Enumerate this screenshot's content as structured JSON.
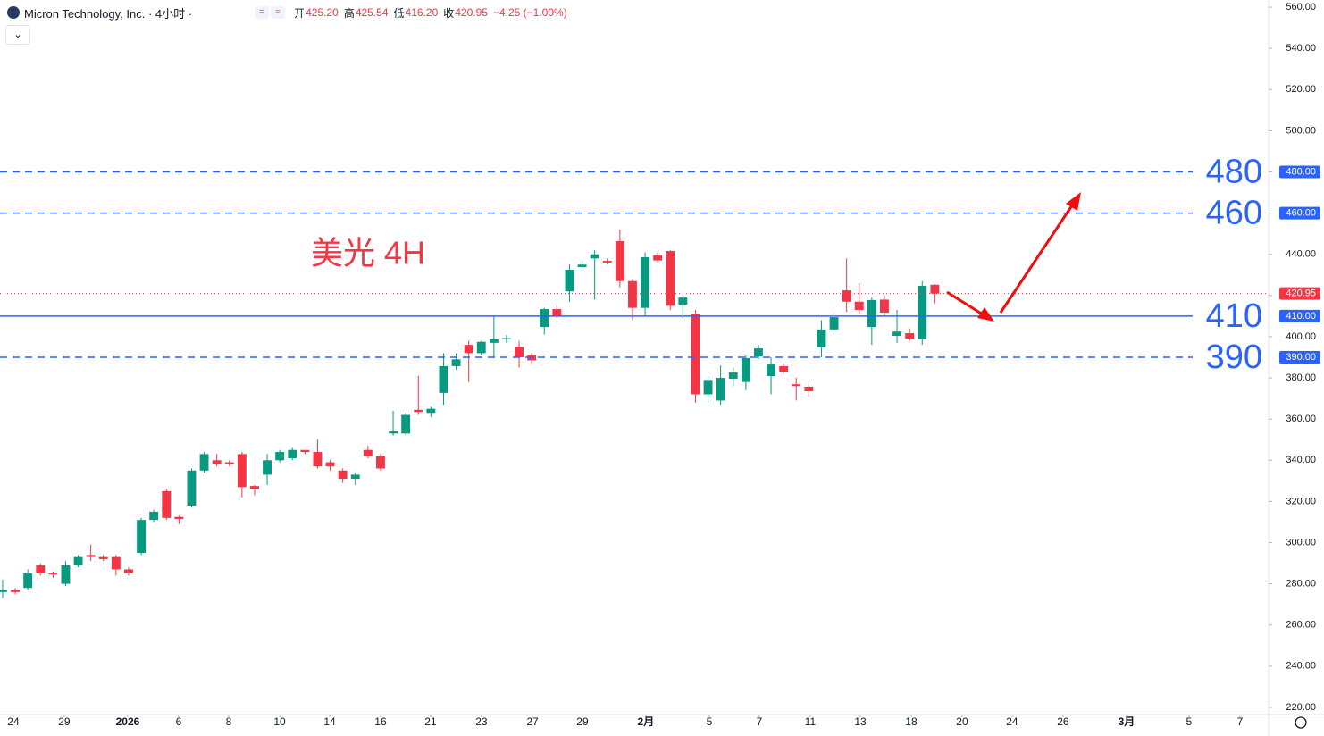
{
  "header": {
    "symbol": "Micron Technology, Inc. · 4小时 ·",
    "fields": [
      {
        "label": "开",
        "value": "425.20"
      },
      {
        "label": "高",
        "value": "425.54"
      },
      {
        "label": "低",
        "value": "416.20"
      },
      {
        "label": "收",
        "value": "420.95"
      }
    ],
    "change": "−4.25 (−1.00%)"
  },
  "chart_data": {
    "type": "candlestick",
    "annotation": "美光 4H",
    "up_color": "#089981",
    "down_color": "#f23645",
    "grid": false,
    "categories": [
      null,
      null,
      null,
      null,
      null,
      null,
      null,
      null,
      null,
      null,
      null,
      null,
      null,
      null,
      null,
      null,
      null,
      null,
      null,
      null,
      null,
      null,
      null,
      null,
      null,
      null,
      null,
      null,
      null,
      null,
      null,
      null,
      null,
      null,
      null,
      null,
      null,
      null,
      null,
      null,
      null,
      null,
      null,
      null,
      null,
      null,
      null,
      null,
      null,
      null,
      null,
      null,
      null,
      null,
      null,
      null,
      null,
      null,
      null,
      null,
      null,
      null,
      null,
      null,
      null,
      null,
      null,
      null,
      null,
      null,
      null,
      null,
      null,
      null,
      null
    ],
    "open": [
      276,
      277,
      278,
      289,
      285,
      280,
      289,
      294,
      293,
      293,
      287,
      295,
      311,
      325,
      312.5,
      318,
      335,
      340,
      339,
      343,
      327.5,
      333,
      340,
      341,
      345,
      344,
      339,
      335,
      331,
      345,
      342,
      353,
      353,
      364.5,
      363,
      372.7,
      385.7,
      396,
      392,
      397,
      399,
      395,
      391,
      404.7,
      413.4,
      422,
      433.8,
      438,
      436.8,
      446.4,
      427,
      414,
      439.5,
      441.6,
      415.6,
      411,
      372,
      369,
      379.6,
      378,
      390.4,
      380.9,
      385.7,
      376.9,
      375.7,
      394.8,
      403.5,
      422.5,
      417,
      404.7,
      418,
      400.4,
      401.7,
      398.7,
      425.2
    ],
    "high": [
      282,
      278,
      287,
      290,
      286,
      291,
      294,
      299,
      294,
      294,
      288,
      312,
      316,
      326,
      313,
      336,
      344,
      343,
      340,
      344,
      328,
      343,
      345,
      346,
      345,
      350,
      340,
      336,
      334,
      347,
      343,
      364,
      363,
      381,
      366,
      392,
      392,
      398,
      398,
      410,
      401,
      398,
      392,
      414,
      415,
      435,
      437,
      442,
      438,
      452,
      428,
      441,
      441,
      442,
      421,
      413,
      381,
      386,
      385,
      391,
      396,
      390,
      387,
      380,
      377,
      408,
      411,
      438,
      426,
      419,
      420,
      413,
      404,
      427,
      425.54
    ],
    "low": [
      273,
      275,
      277,
      284,
      283,
      279,
      288,
      291,
      291,
      284,
      284,
      294,
      310,
      311,
      309,
      317,
      334,
      337,
      337,
      322,
      323,
      328,
      339,
      340,
      343,
      336,
      335,
      329,
      328,
      341,
      335,
      352,
      352,
      362,
      361,
      367,
      384,
      378,
      391,
      390,
      397,
      385,
      387,
      401,
      409,
      417,
      432,
      418,
      435,
      424,
      408,
      410,
      436,
      413,
      409,
      368,
      368,
      367,
      376,
      374,
      389,
      372,
      382,
      369,
      371,
      390,
      402,
      412,
      411,
      396,
      410,
      397,
      398,
      396,
      416.2
    ],
    "close": [
      277,
      276,
      285,
      285,
      284.5,
      289,
      293,
      293,
      292,
      287,
      285,
      311,
      315,
      312,
      311.5,
      335,
      343,
      338,
      338,
      327,
      326,
      340,
      344,
      345,
      344,
      337,
      337,
      331,
      333,
      342,
      336,
      354,
      362,
      363.5,
      365,
      385.7,
      389,
      392,
      397.5,
      398.7,
      399.3,
      390,
      388.5,
      413.4,
      410,
      432.5,
      435,
      440,
      436,
      427,
      414,
      438.6,
      437,
      415,
      419,
      372,
      379,
      380,
      382.6,
      389.6,
      394.3,
      386.5,
      383,
      376,
      373.5,
      403.5,
      409.5,
      417,
      413,
      417.8,
      411.7,
      402.5,
      399,
      424.7,
      420.95
    ],
    "xlim": [
      -0.21,
      100.5
    ],
    "xticks": [
      {
        "value": 0.85,
        "label": "24"
      },
      {
        "value": 4.89,
        "label": "29"
      },
      {
        "value": 9.93,
        "label": "2026"
      },
      {
        "value": 13.97,
        "label": "6"
      },
      {
        "value": 17.94,
        "label": "8"
      },
      {
        "value": 21.99,
        "label": "10"
      },
      {
        "value": 25.96,
        "label": "14"
      },
      {
        "value": 30.0,
        "label": "16"
      },
      {
        "value": 33.97,
        "label": "21"
      },
      {
        "value": 38.01,
        "label": "23"
      },
      {
        "value": 42.06,
        "label": "27"
      },
      {
        "value": 46.03,
        "label": "29"
      },
      {
        "value": 51.06,
        "label": "2月"
      },
      {
        "value": 56.1,
        "label": "5"
      },
      {
        "value": 60.07,
        "label": "7"
      },
      {
        "value": 64.11,
        "label": "11"
      },
      {
        "value": 68.09,
        "label": "13"
      },
      {
        "value": 72.13,
        "label": "18"
      },
      {
        "value": 76.17,
        "label": "20"
      },
      {
        "value": 80.14,
        "label": "24"
      },
      {
        "value": 84.18,
        "label": "26"
      },
      {
        "value": 89.22,
        "label": "3月"
      },
      {
        "value": 94.18,
        "label": "5"
      },
      {
        "value": 98.23,
        "label": "7"
      }
    ],
    "ylim": [
      216.5,
      563.5
    ],
    "yticks": [
      {
        "value": 220,
        "label": "220.00"
      },
      {
        "value": 240,
        "label": "240.00"
      },
      {
        "value": 260,
        "label": "260.00"
      },
      {
        "value": 280,
        "label": "280.00"
      },
      {
        "value": 300,
        "label": "300.00"
      },
      {
        "value": 320,
        "label": "320.00"
      },
      {
        "value": 340,
        "label": "340.00"
      },
      {
        "value": 360,
        "label": "360.00"
      },
      {
        "value": 380,
        "label": "380.00"
      },
      {
        "value": 400,
        "label": "400.00"
      },
      {
        "value": 420,
        "label": "420.00"
      },
      {
        "value": 440,
        "label": "440.00"
      },
      {
        "value": 460,
        "label": "460.00"
      },
      {
        "value": 480,
        "label": "480.00"
      },
      {
        "value": 500,
        "label": "500.00"
      },
      {
        "value": 520,
        "label": "520.00"
      },
      {
        "value": 540,
        "label": "540.00"
      },
      {
        "value": 560,
        "label": "560.00"
      }
    ],
    "levels": [
      {
        "value": 480,
        "label": "480",
        "axis_label": "480.00",
        "style": "dashed"
      },
      {
        "value": 460,
        "label": "460",
        "axis_label": "460.00",
        "style": "dashed"
      },
      {
        "value": 410,
        "label": "410",
        "axis_label": "410.00",
        "style": "solid"
      },
      {
        "value": 390,
        "label": "390",
        "axis_label": "390.00",
        "style": "dashed"
      }
    ],
    "level_color": "#2962ff",
    "last_price": {
      "value": 420.95,
      "label": "420.95"
    }
  }
}
